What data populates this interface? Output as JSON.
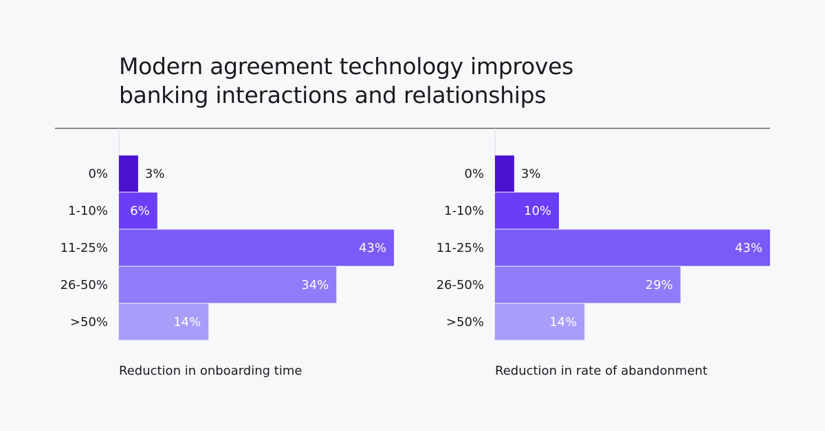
{
  "title": "Modern agreement technology improves\nbanking interactions and relationships",
  "chart_data": [
    {
      "type": "bar",
      "orientation": "horizontal",
      "categories": [
        "0%",
        "1-10%",
        "11-25%",
        "26-50%",
        ">50%"
      ],
      "values": [
        3,
        6,
        43,
        34,
        14
      ],
      "value_labels": [
        "3%",
        "6%",
        "43%",
        "34%",
        "14%"
      ],
      "colors": [
        "#4a13cf",
        "#6a3df6",
        "#7a5bf7",
        "#8f7cf8",
        "#a89df9"
      ],
      "xlim": [
        0,
        43
      ],
      "x_label": "Reduction in onboarding time"
    },
    {
      "type": "bar",
      "orientation": "horizontal",
      "categories": [
        "0%",
        "1-10%",
        "11-25%",
        "26-50%",
        ">50%"
      ],
      "values": [
        3,
        10,
        43,
        29,
        14
      ],
      "value_labels": [
        "3%",
        "10%",
        "43%",
        "29%",
        "14%"
      ],
      "colors": [
        "#4a13cf",
        "#6a3df6",
        "#7a5bf7",
        "#8f7cf8",
        "#a89df9"
      ],
      "xlim": [
        0,
        43
      ],
      "x_label": "Reduction in rate of abandonment"
    }
  ]
}
